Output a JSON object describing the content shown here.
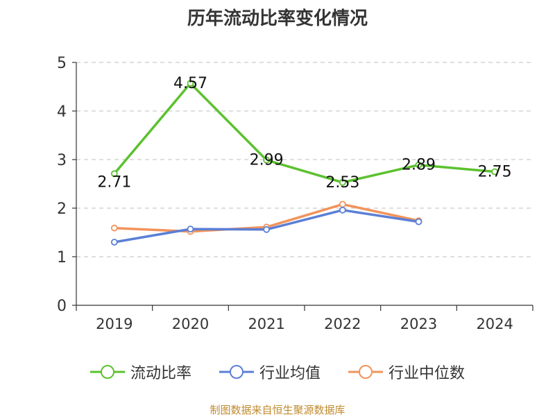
{
  "title": "历年流动比率变化情况",
  "source": "制图数据来自恒生聚源数据库",
  "chart_data": {
    "type": "line",
    "categories": [
      "2019",
      "2020",
      "2021",
      "2022",
      "2023",
      "2024"
    ],
    "ylim": [
      0,
      5
    ],
    "yticks": [
      0,
      1,
      2,
      3,
      4,
      5
    ],
    "grid": true,
    "legend_position": "bottom",
    "series": [
      {
        "name": "流动比率",
        "color": "#5cc12f",
        "values": [
          2.71,
          4.57,
          2.99,
          2.53,
          2.89,
          2.75
        ],
        "labels": [
          "2.71",
          "4.57",
          "2.99",
          "2.53",
          "2.89",
          "2.75"
        ]
      },
      {
        "name": "行业均值",
        "color": "#5b7fd6",
        "values": [
          1.3,
          1.57,
          1.56,
          1.96,
          1.72,
          null
        ]
      },
      {
        "name": "行业中位数",
        "color": "#f2935b",
        "values": [
          1.59,
          1.52,
          1.61,
          2.08,
          1.74,
          null
        ]
      }
    ]
  }
}
